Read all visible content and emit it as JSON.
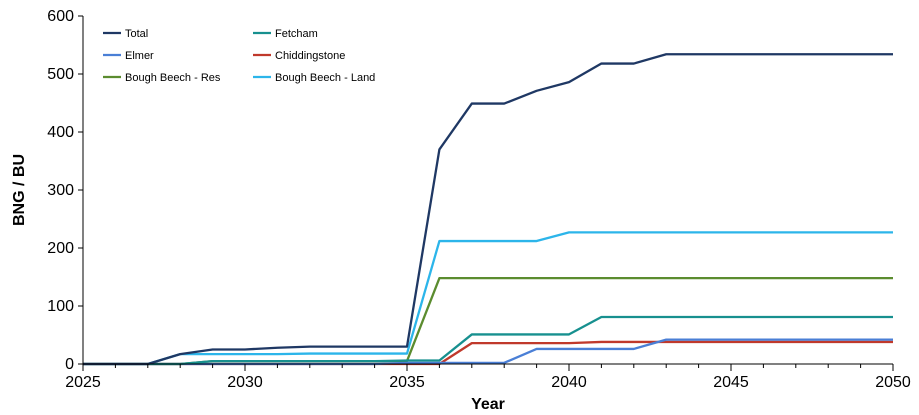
{
  "chart_data": {
    "type": "line",
    "title": "",
    "xlabel": "Year",
    "ylabel": "BNG / BU",
    "xlim": [
      2025,
      2050
    ],
    "ylim": [
      0,
      600
    ],
    "xticks": [
      2025,
      2030,
      2035,
      2040,
      2045,
      2050
    ],
    "yticks": [
      0,
      100,
      200,
      300,
      400,
      500,
      600
    ],
    "grid": false,
    "legend_position": "top-left",
    "x": [
      2025,
      2026,
      2027,
      2028,
      2029,
      2030,
      2031,
      2032,
      2033,
      2034,
      2035,
      2036,
      2037,
      2038,
      2039,
      2040,
      2041,
      2042,
      2043,
      2044,
      2045,
      2046,
      2047,
      2048,
      2049,
      2050
    ],
    "series": [
      {
        "name": "Total",
        "color": "#1f3864",
        "values": [
          0,
          0,
          0,
          17,
          25,
          25,
          28,
          30,
          30,
          30,
          30,
          370,
          449,
          449,
          471,
          486,
          518,
          518,
          534,
          534,
          534,
          534,
          534,
          534,
          534,
          534
        ]
      },
      {
        "name": "Fetcham",
        "color": "#17908f",
        "values": [
          0,
          0,
          0,
          0,
          5,
          5,
          5,
          5,
          5,
          5,
          6,
          6,
          51,
          51,
          51,
          51,
          81,
          81,
          81,
          81,
          81,
          81,
          81,
          81,
          81,
          81
        ]
      },
      {
        "name": "Elmer",
        "color": "#4a7fd6",
        "values": [
          0,
          0,
          0,
          0,
          0,
          0,
          0,
          0,
          0,
          0,
          2,
          2,
          2,
          2,
          26,
          26,
          26,
          26,
          42,
          42,
          42,
          42,
          42,
          42,
          42,
          42
        ]
      },
      {
        "name": "Chiddingstone",
        "color": "#c0392b",
        "values": [
          0,
          0,
          0,
          0,
          0,
          0,
          0,
          0,
          0,
          0,
          0,
          0,
          36,
          36,
          36,
          36,
          38,
          38,
          38,
          38,
          38,
          38,
          38,
          38,
          38,
          38
        ]
      },
      {
        "name": "Bough Beech - Res",
        "color": "#5b8c2f",
        "values": [
          0,
          0,
          0,
          0,
          5,
          5,
          5,
          5,
          5,
          5,
          5,
          148,
          148,
          148,
          148,
          148,
          148,
          148,
          148,
          148,
          148,
          148,
          148,
          148,
          148,
          148
        ]
      },
      {
        "name": "Bough Beech - Land",
        "color": "#2cb5ea",
        "values": [
          0,
          0,
          0,
          17,
          17,
          17,
          17,
          18,
          18,
          18,
          18,
          212,
          212,
          212,
          212,
          227,
          227,
          227,
          227,
          227,
          227,
          227,
          227,
          227,
          227,
          227
        ]
      }
    ]
  }
}
